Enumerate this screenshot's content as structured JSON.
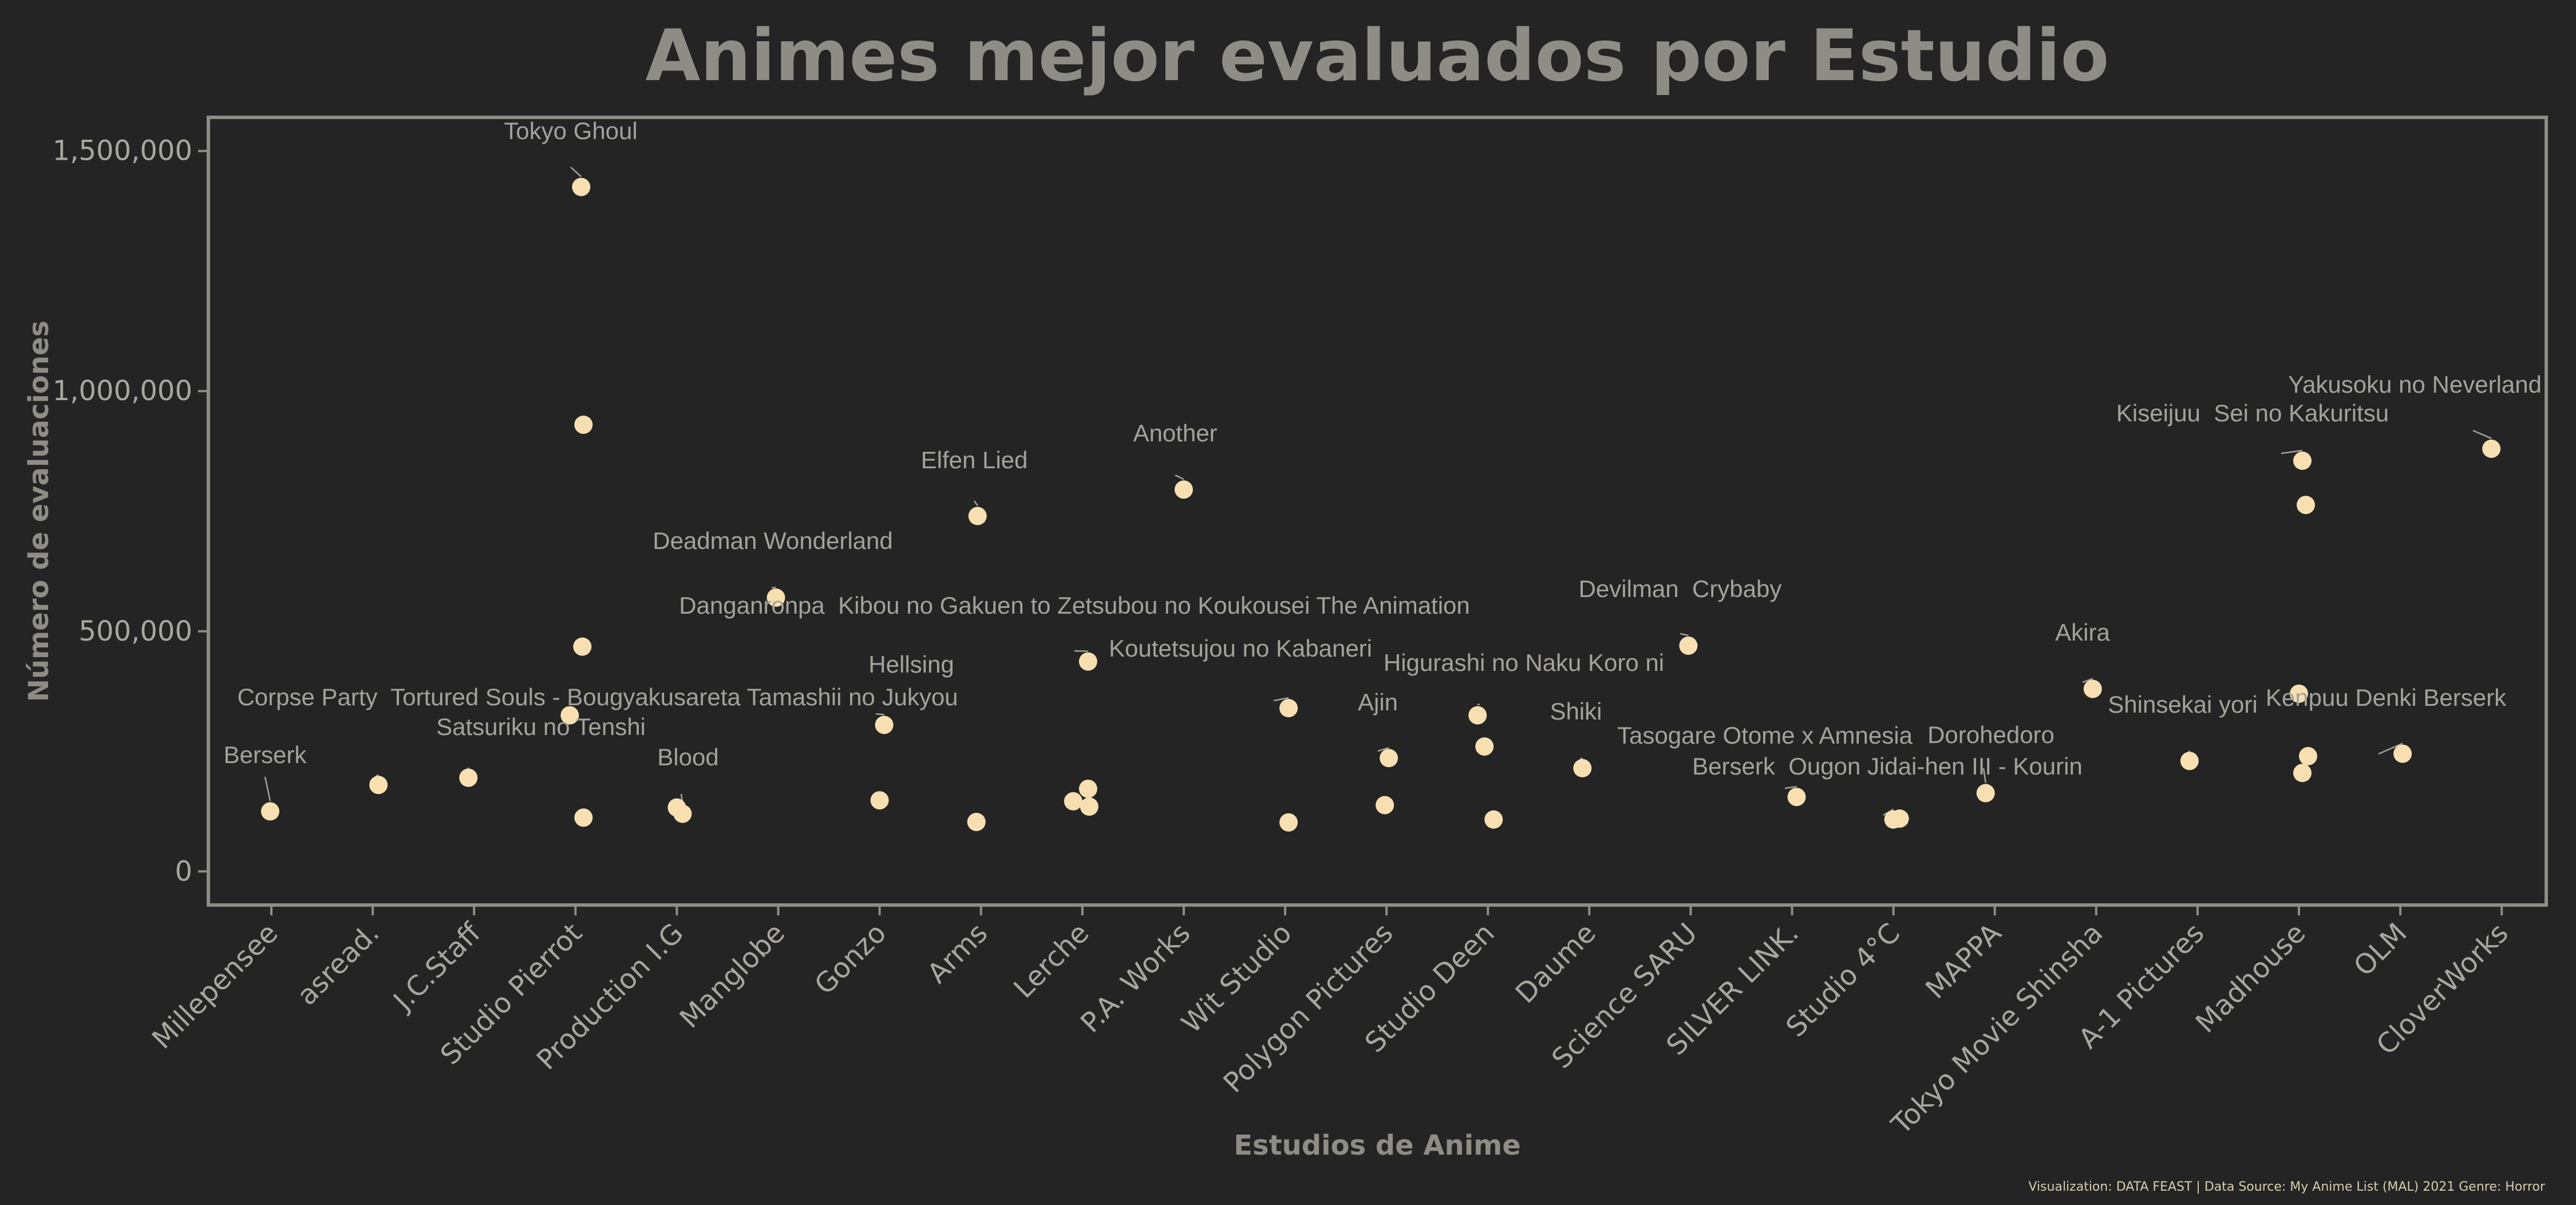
{
  "chart_data": {
    "type": "scatter",
    "title": "Animes mejor evaluados por Estudio",
    "xlabel": "Estudios de Anime",
    "ylabel": "Número de evaluaciones",
    "ylim": [
      -70000,
      1570000
    ],
    "y_ticks": [
      0,
      500000,
      1000000,
      1500000
    ],
    "y_tick_labels": [
      "0",
      "500,000",
      "1,000,000",
      "1,500,000"
    ],
    "grid": false,
    "categories": [
      "Millepensee",
      "asread.",
      "J.C.Staff",
      "Studio Pierrot",
      "Production I.G",
      "Manglobe",
      "Gonzo",
      "Arms",
      "Lerche",
      "P.A. Works",
      "Wit Studio",
      "Polygon Pictures",
      "Studio Deen",
      "Daume",
      "Science SARU",
      "SILVER LINK.",
      "Studio 4°C",
      "MAPPA",
      "Tokyo Movie Shinsha",
      "A-1 Pictures",
      "Madhouse",
      "OLM",
      "CloverWorks"
    ],
    "points": [
      {
        "studio": "Millepensee",
        "y": 125000,
        "label": "Berserk"
      },
      {
        "studio": "asread.",
        "y": 180000,
        "label": "Corpse Party  Tortured Souls - Bougyakusareta Tamashii no Jukyou"
      },
      {
        "studio": "J.C.Staff",
        "y": 195000,
        "label": "Satsuriku no Tenshi"
      },
      {
        "studio": "Studio Pierrot",
        "y": 1425000,
        "label": "Tokyo Ghoul"
      },
      {
        "studio": "Studio Pierrot",
        "y": 930000,
        "label": ""
      },
      {
        "studio": "Studio Pierrot",
        "y": 468000,
        "label": ""
      },
      {
        "studio": "Studio Pierrot",
        "y": 325000,
        "label": ""
      },
      {
        "studio": "Studio Pierrot",
        "y": 112000,
        "label": ""
      },
      {
        "studio": "Production I.G",
        "y": 133000,
        "label": ""
      },
      {
        "studio": "Production I.G",
        "y": 120000,
        "label": "Blood"
      },
      {
        "studio": "Manglobe",
        "y": 570000,
        "label": "Deadman Wonderland"
      },
      {
        "studio": "Gonzo",
        "y": 305000,
        "label": "Hellsing"
      },
      {
        "studio": "Gonzo",
        "y": 148000,
        "label": ""
      },
      {
        "studio": "Arms",
        "y": 740000,
        "label": "Elfen Lied"
      },
      {
        "studio": "Arms",
        "y": 103000,
        "label": ""
      },
      {
        "studio": "Lerche",
        "y": 437000,
        "label": "Danganronpa  Kibou no Gakuen to Zetsubou no Koukousei The Animation"
      },
      {
        "studio": "Lerche",
        "y": 172000,
        "label": ""
      },
      {
        "studio": "Lerche",
        "y": 146000,
        "label": ""
      },
      {
        "studio": "Lerche",
        "y": 135000,
        "label": ""
      },
      {
        "studio": "P.A. Works",
        "y": 795000,
        "label": "Another"
      },
      {
        "studio": "Wit Studio",
        "y": 340000,
        "label": "Koutetsujou no Kabaneri"
      },
      {
        "studio": "Wit Studio",
        "y": 102000,
        "label": ""
      },
      {
        "studio": "Polygon Pictures",
        "y": 236000,
        "label": "Ajin"
      },
      {
        "studio": "Polygon Pictures",
        "y": 138000,
        "label": ""
      },
      {
        "studio": "Studio Deen",
        "y": 325000,
        "label": "Higurashi no Naku Koro ni"
      },
      {
        "studio": "Studio Deen",
        "y": 260000,
        "label": ""
      },
      {
        "studio": "Studio Deen",
        "y": 108000,
        "label": ""
      },
      {
        "studio": "Daume",
        "y": 215000,
        "label": "Shiki"
      },
      {
        "studio": "Science SARU",
        "y": 470000,
        "label": "Devilman  Crybaby"
      },
      {
        "studio": "SILVER LINK.",
        "y": 155000,
        "label": "Tasogare Otome x Amnesia"
      },
      {
        "studio": "Studio 4°C",
        "y": 108000,
        "label": "Berserk  Ougon Jidai-hen III - Kourin"
      },
      {
        "studio": "Studio 4°C",
        "y": 110000,
        "label": ""
      },
      {
        "studio": "MAPPA",
        "y": 163000,
        "label": "Dorohedoro"
      },
      {
        "studio": "Tokyo Movie Shinsha",
        "y": 380000,
        "label": "Akira"
      },
      {
        "studio": "A-1 Pictures",
        "y": 230000,
        "label": "Shinsekai yori"
      },
      {
        "studio": "Madhouse",
        "y": 855000,
        "label": "Kiseijuu  Sei no Kakuritsu"
      },
      {
        "studio": "Madhouse",
        "y": 763000,
        "label": ""
      },
      {
        "studio": "Madhouse",
        "y": 370000,
        "label": ""
      },
      {
        "studio": "Madhouse",
        "y": 240000,
        "label": ""
      },
      {
        "studio": "Madhouse",
        "y": 205000,
        "label": ""
      },
      {
        "studio": "OLM",
        "y": 245000,
        "label": "Kenpuu Denki Berserk"
      },
      {
        "studio": "CloverWorks",
        "y": 880000,
        "label": "Yakusoku no Neverland"
      }
    ],
    "caption": "Visualization: DATA FEAST | Data Source: My Anime List (MAL) 2021 Genre: Horror",
    "colors": {
      "background": "#242424",
      "point": "#f8dfb2",
      "axis": "#8e8d85",
      "text": "#a3a29b"
    }
  }
}
